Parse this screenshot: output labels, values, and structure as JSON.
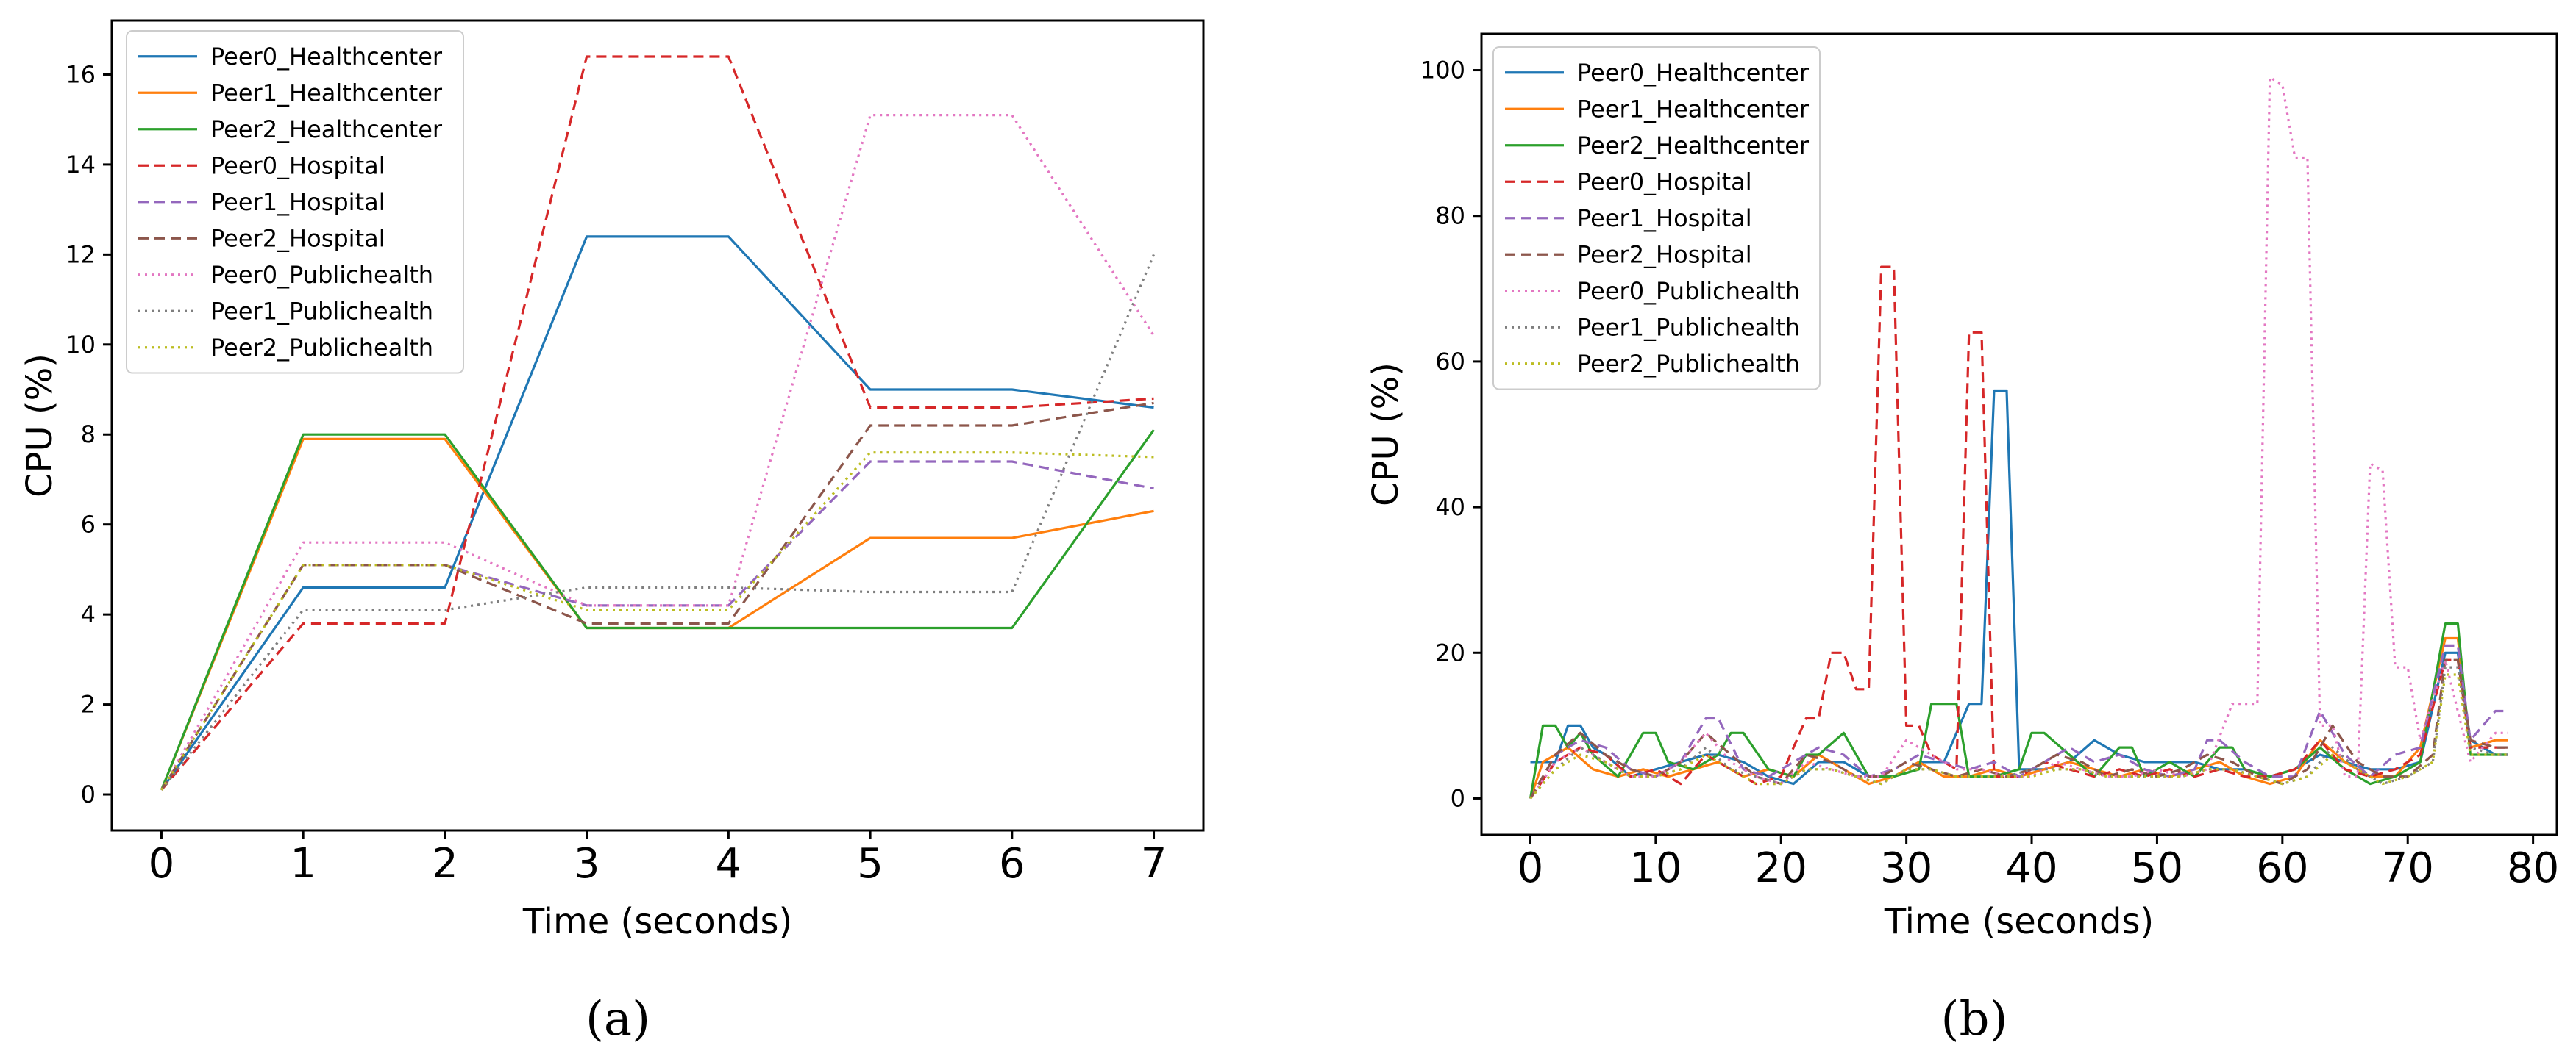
{
  "chart_data": [
    {
      "type": "line",
      "caption": "(a)",
      "xlabel": "Time (seconds)",
      "ylabel": "CPU (%)",
      "xlim": [
        -0.35,
        7.35
      ],
      "ylim": [
        -0.8,
        17.2
      ],
      "xticks": [
        0,
        1,
        2,
        3,
        4,
        5,
        6,
        7
      ],
      "yticks": [
        0,
        2,
        4,
        6,
        8,
        10,
        12,
        14,
        16
      ],
      "legend_position": "top-left",
      "series": [
        {
          "name": "Peer0_Healthcenter",
          "color": "#1f77b4",
          "dash": "solid",
          "x": [
            0,
            1,
            2,
            3,
            4,
            5,
            6,
            7
          ],
          "values": [
            0.1,
            4.6,
            4.6,
            12.4,
            12.4,
            9.0,
            9.0,
            8.6
          ]
        },
        {
          "name": "Peer1_Healthcenter",
          "color": "#ff7f0e",
          "dash": "solid",
          "x": [
            0,
            1,
            2,
            3,
            4,
            5,
            6,
            7
          ],
          "values": [
            0.1,
            7.9,
            7.9,
            3.7,
            3.7,
            5.7,
            5.7,
            6.3
          ]
        },
        {
          "name": "Peer2_Healthcenter",
          "color": "#2ca02c",
          "dash": "solid",
          "x": [
            0,
            1,
            2,
            3,
            4,
            5,
            6,
            7
          ],
          "values": [
            0.1,
            8.0,
            8.0,
            3.7,
            3.7,
            3.7,
            3.7,
            8.1
          ]
        },
        {
          "name": "Peer0_Hospital",
          "color": "#d62728",
          "dash": "dashed",
          "x": [
            0,
            1,
            2,
            3,
            4,
            5,
            6,
            7
          ],
          "values": [
            0.1,
            3.8,
            3.8,
            16.4,
            16.4,
            8.6,
            8.6,
            8.8
          ]
        },
        {
          "name": "Peer1_Hospital",
          "color": "#9467bd",
          "dash": "dashed",
          "x": [
            0,
            1,
            2,
            3,
            4,
            5,
            6,
            7
          ],
          "values": [
            0.1,
            5.1,
            5.1,
            4.2,
            4.2,
            7.4,
            7.4,
            6.8
          ]
        },
        {
          "name": "Peer2_Hospital",
          "color": "#8c564b",
          "dash": "dashed",
          "x": [
            0,
            1,
            2,
            3,
            4,
            5,
            6,
            7
          ],
          "values": [
            0.1,
            5.1,
            5.1,
            3.8,
            3.8,
            8.2,
            8.2,
            8.7
          ]
        },
        {
          "name": "Peer0_Publichealth",
          "color": "#e377c2",
          "dash": "dotted",
          "x": [
            0,
            1,
            2,
            3,
            4,
            5,
            6,
            7
          ],
          "values": [
            0.1,
            5.6,
            5.6,
            4.2,
            4.2,
            15.1,
            15.1,
            10.2
          ]
        },
        {
          "name": "Peer1_Publichealth",
          "color": "#7f7f7f",
          "dash": "dotted",
          "x": [
            0,
            1,
            2,
            3,
            4,
            5,
            6,
            7
          ],
          "values": [
            0.1,
            4.1,
            4.1,
            4.6,
            4.6,
            4.5,
            4.5,
            12.0
          ]
        },
        {
          "name": "Peer2_Publichealth",
          "color": "#bcbd22",
          "dash": "dotted",
          "x": [
            0,
            1,
            2,
            3,
            4,
            5,
            6,
            7
          ],
          "values": [
            0.1,
            5.1,
            5.1,
            4.1,
            4.1,
            7.6,
            7.6,
            7.5
          ]
        }
      ]
    },
    {
      "type": "line",
      "caption": "(b)",
      "xlabel": "Time (seconds)",
      "ylabel": "CPU (%)",
      "xlim": [
        -3.9,
        81.9
      ],
      "ylim": [
        -5,
        105
      ],
      "xticks": [
        0,
        10,
        20,
        30,
        40,
        50,
        60,
        70,
        80
      ],
      "yticks": [
        0,
        20,
        40,
        60,
        80,
        100
      ],
      "legend_position": "top-left",
      "series": [
        {
          "name": "Peer0_Healthcenter",
          "color": "#1f77b4",
          "dash": "solid",
          "x": [
            0,
            2,
            3,
            4,
            5,
            6,
            8,
            10,
            12,
            14,
            15,
            17,
            19,
            21,
            23,
            25,
            27,
            29,
            31,
            33,
            35,
            36,
            37,
            38,
            39,
            41,
            43,
            45,
            47,
            49,
            51,
            53,
            55,
            57,
            59,
            61,
            63,
            65,
            67,
            69,
            71,
            73,
            74,
            75,
            77,
            78
          ],
          "values": [
            5,
            5,
            10,
            10,
            7,
            6,
            3,
            4,
            5,
            6,
            6,
            5,
            3,
            2,
            5,
            5,
            3,
            3,
            5,
            5,
            13,
            13,
            56,
            56,
            4,
            4,
            5,
            8,
            6,
            5,
            5,
            5,
            4,
            4,
            3,
            4,
            6,
            5,
            4,
            4,
            5,
            20,
            20,
            8,
            6,
            6
          ]
        },
        {
          "name": "Peer1_Healthcenter",
          "color": "#ff7f0e",
          "dash": "solid",
          "x": [
            0,
            1,
            3,
            5,
            7,
            9,
            11,
            13,
            15,
            17,
            19,
            21,
            23,
            25,
            27,
            29,
            31,
            33,
            35,
            37,
            39,
            41,
            43,
            45,
            47,
            49,
            51,
            53,
            55,
            57,
            59,
            61,
            63,
            65,
            67,
            69,
            71,
            73,
            74,
            75,
            77,
            78
          ],
          "values": [
            0,
            5,
            7,
            4,
            3,
            4,
            3,
            4,
            5,
            3,
            4,
            3,
            6,
            4,
            2,
            3,
            5,
            3,
            3,
            4,
            3,
            4,
            5,
            4,
            3,
            4,
            3,
            4,
            5,
            3,
            2,
            3,
            8,
            5,
            3,
            3,
            7,
            22,
            22,
            7,
            8,
            8
          ]
        },
        {
          "name": "Peer2_Healthcenter",
          "color": "#2ca02c",
          "dash": "solid",
          "x": [
            0,
            1,
            2,
            3,
            4,
            5,
            7,
            9,
            10,
            11,
            13,
            15,
            16,
            17,
            19,
            21,
            22,
            23,
            25,
            27,
            29,
            31,
            32,
            33,
            34,
            35,
            37,
            39,
            40,
            41,
            43,
            45,
            47,
            48,
            49,
            51,
            53,
            55,
            56,
            57,
            59,
            61,
            63,
            65,
            67,
            69,
            71,
            73,
            74,
            75,
            77,
            78
          ],
          "values": [
            0,
            10,
            10,
            7,
            9,
            6,
            3,
            9,
            9,
            5,
            4,
            6,
            9,
            9,
            4,
            3,
            6,
            6,
            9,
            3,
            3,
            4,
            13,
            13,
            13,
            3,
            3,
            4,
            9,
            9,
            6,
            3,
            7,
            7,
            3,
            5,
            3,
            7,
            7,
            4,
            3,
            4,
            7,
            4,
            2,
            3,
            5,
            24,
            24,
            6,
            6,
            6
          ]
        },
        {
          "name": "Peer0_Hospital",
          "color": "#d62728",
          "dash": "dashed",
          "x": [
            0,
            2,
            4,
            6,
            8,
            10,
            12,
            14,
            16,
            18,
            20,
            22,
            23,
            24,
            25,
            26,
            27,
            28,
            29,
            30,
            31,
            32,
            33,
            34,
            35,
            36,
            37,
            38,
            39,
            41,
            43,
            45,
            47,
            49,
            51,
            53,
            55,
            57,
            59,
            61,
            63,
            65,
            67,
            69,
            71,
            73,
            74,
            75,
            77,
            78
          ],
          "values": [
            0,
            5,
            7,
            6,
            3,
            4,
            2,
            6,
            4,
            2,
            3,
            11,
            11,
            20,
            20,
            15,
            15,
            73,
            73,
            10,
            10,
            6,
            5,
            4,
            64,
            64,
            3,
            3,
            3,
            5,
            4,
            3,
            4,
            3,
            4,
            3,
            4,
            3,
            3,
            4,
            8,
            4,
            3,
            4,
            6,
            19,
            19,
            7,
            7,
            7
          ]
        },
        {
          "name": "Peer1_Hospital",
          "color": "#9467bd",
          "dash": "dashed",
          "x": [
            0,
            2,
            4,
            6,
            8,
            10,
            12,
            14,
            15,
            17,
            19,
            21,
            23,
            25,
            27,
            29,
            31,
            33,
            35,
            37,
            39,
            41,
            43,
            45,
            47,
            49,
            51,
            53,
            54,
            55,
            57,
            59,
            61,
            63,
            65,
            67,
            69,
            71,
            73,
            74,
            75,
            77,
            78
          ],
          "values": [
            0,
            6,
            8,
            7,
            4,
            3,
            5,
            11,
            11,
            4,
            3,
            5,
            7,
            6,
            3,
            4,
            6,
            5,
            4,
            5,
            3,
            5,
            7,
            5,
            6,
            4,
            3,
            4,
            8,
            8,
            5,
            3,
            3,
            12,
            6,
            3,
            6,
            7,
            21,
            21,
            8,
            12,
            12
          ]
        },
        {
          "name": "Peer2_Hospital",
          "color": "#8c564b",
          "dash": "dashed",
          "x": [
            0,
            2,
            4,
            6,
            8,
            10,
            12,
            14,
            16,
            18,
            20,
            22,
            24,
            26,
            28,
            30,
            32,
            34,
            36,
            38,
            40,
            42,
            44,
            46,
            48,
            50,
            52,
            54,
            56,
            58,
            60,
            62,
            64,
            66,
            68,
            70,
            72,
            73,
            74,
            75,
            77,
            78
          ],
          "values": [
            0,
            6,
            9,
            6,
            4,
            3,
            5,
            9,
            6,
            3,
            2,
            6,
            5,
            3,
            3,
            5,
            4,
            3,
            4,
            3,
            4,
            6,
            5,
            3,
            4,
            3,
            4,
            6,
            5,
            3,
            2,
            4,
            10,
            5,
            3,
            3,
            6,
            19,
            19,
            8,
            7,
            7
          ]
        },
        {
          "name": "Peer0_Publichealth",
          "color": "#e377c2",
          "dash": "dotted",
          "x": [
            0,
            2,
            4,
            6,
            8,
            10,
            12,
            14,
            16,
            18,
            20,
            22,
            24,
            26,
            28,
            30,
            32,
            34,
            36,
            38,
            40,
            42,
            44,
            46,
            48,
            50,
            52,
            54,
            56,
            57,
            58,
            59,
            60,
            61,
            62,
            63,
            64,
            65,
            66,
            67,
            68,
            69,
            70,
            71,
            73,
            75,
            77,
            78
          ],
          "values": [
            0,
            5,
            7,
            5,
            3,
            3,
            5,
            9,
            5,
            3,
            2,
            5,
            4,
            3,
            3,
            8,
            6,
            4,
            4,
            3,
            3,
            5,
            4,
            3,
            3,
            4,
            3,
            4,
            13,
            13,
            13,
            99,
            98,
            88,
            88,
            10,
            10,
            3,
            3,
            46,
            45,
            18,
            18,
            8,
            19,
            5,
            9,
            9
          ]
        },
        {
          "name": "Peer1_Publichealth",
          "color": "#7f7f7f",
          "dash": "dotted",
          "x": [
            0,
            2,
            4,
            6,
            8,
            10,
            12,
            14,
            16,
            18,
            20,
            22,
            24,
            26,
            28,
            30,
            32,
            34,
            36,
            38,
            40,
            42,
            44,
            46,
            48,
            50,
            52,
            54,
            56,
            58,
            60,
            62,
            64,
            66,
            68,
            70,
            72,
            73,
            74,
            75,
            77,
            78
          ],
          "values": [
            0,
            4,
            7,
            5,
            3,
            3,
            4,
            7,
            4,
            3,
            2,
            4,
            4,
            3,
            2,
            4,
            4,
            3,
            3,
            3,
            4,
            4,
            4,
            3,
            3,
            3,
            3,
            4,
            4,
            3,
            2,
            3,
            7,
            4,
            2,
            3,
            5,
            18,
            18,
            7,
            6,
            6
          ]
        },
        {
          "name": "Peer2_Publichealth",
          "color": "#bcbd22",
          "dash": "dotted",
          "x": [
            0,
            2,
            4,
            6,
            8,
            10,
            12,
            14,
            16,
            18,
            20,
            22,
            24,
            26,
            28,
            30,
            32,
            34,
            36,
            38,
            40,
            42,
            44,
            46,
            48,
            50,
            52,
            54,
            56,
            58,
            60,
            62,
            64,
            66,
            68,
            70,
            72,
            73,
            74,
            75,
            77,
            78
          ],
          "values": [
            0,
            4,
            6,
            5,
            3,
            3,
            4,
            6,
            4,
            2,
            2,
            4,
            4,
            3,
            2,
            4,
            4,
            3,
            3,
            3,
            3,
            4,
            4,
            3,
            3,
            3,
            3,
            4,
            4,
            3,
            2,
            3,
            6,
            4,
            2,
            3,
            5,
            17,
            17,
            6,
            6,
            6
          ]
        }
      ]
    }
  ]
}
